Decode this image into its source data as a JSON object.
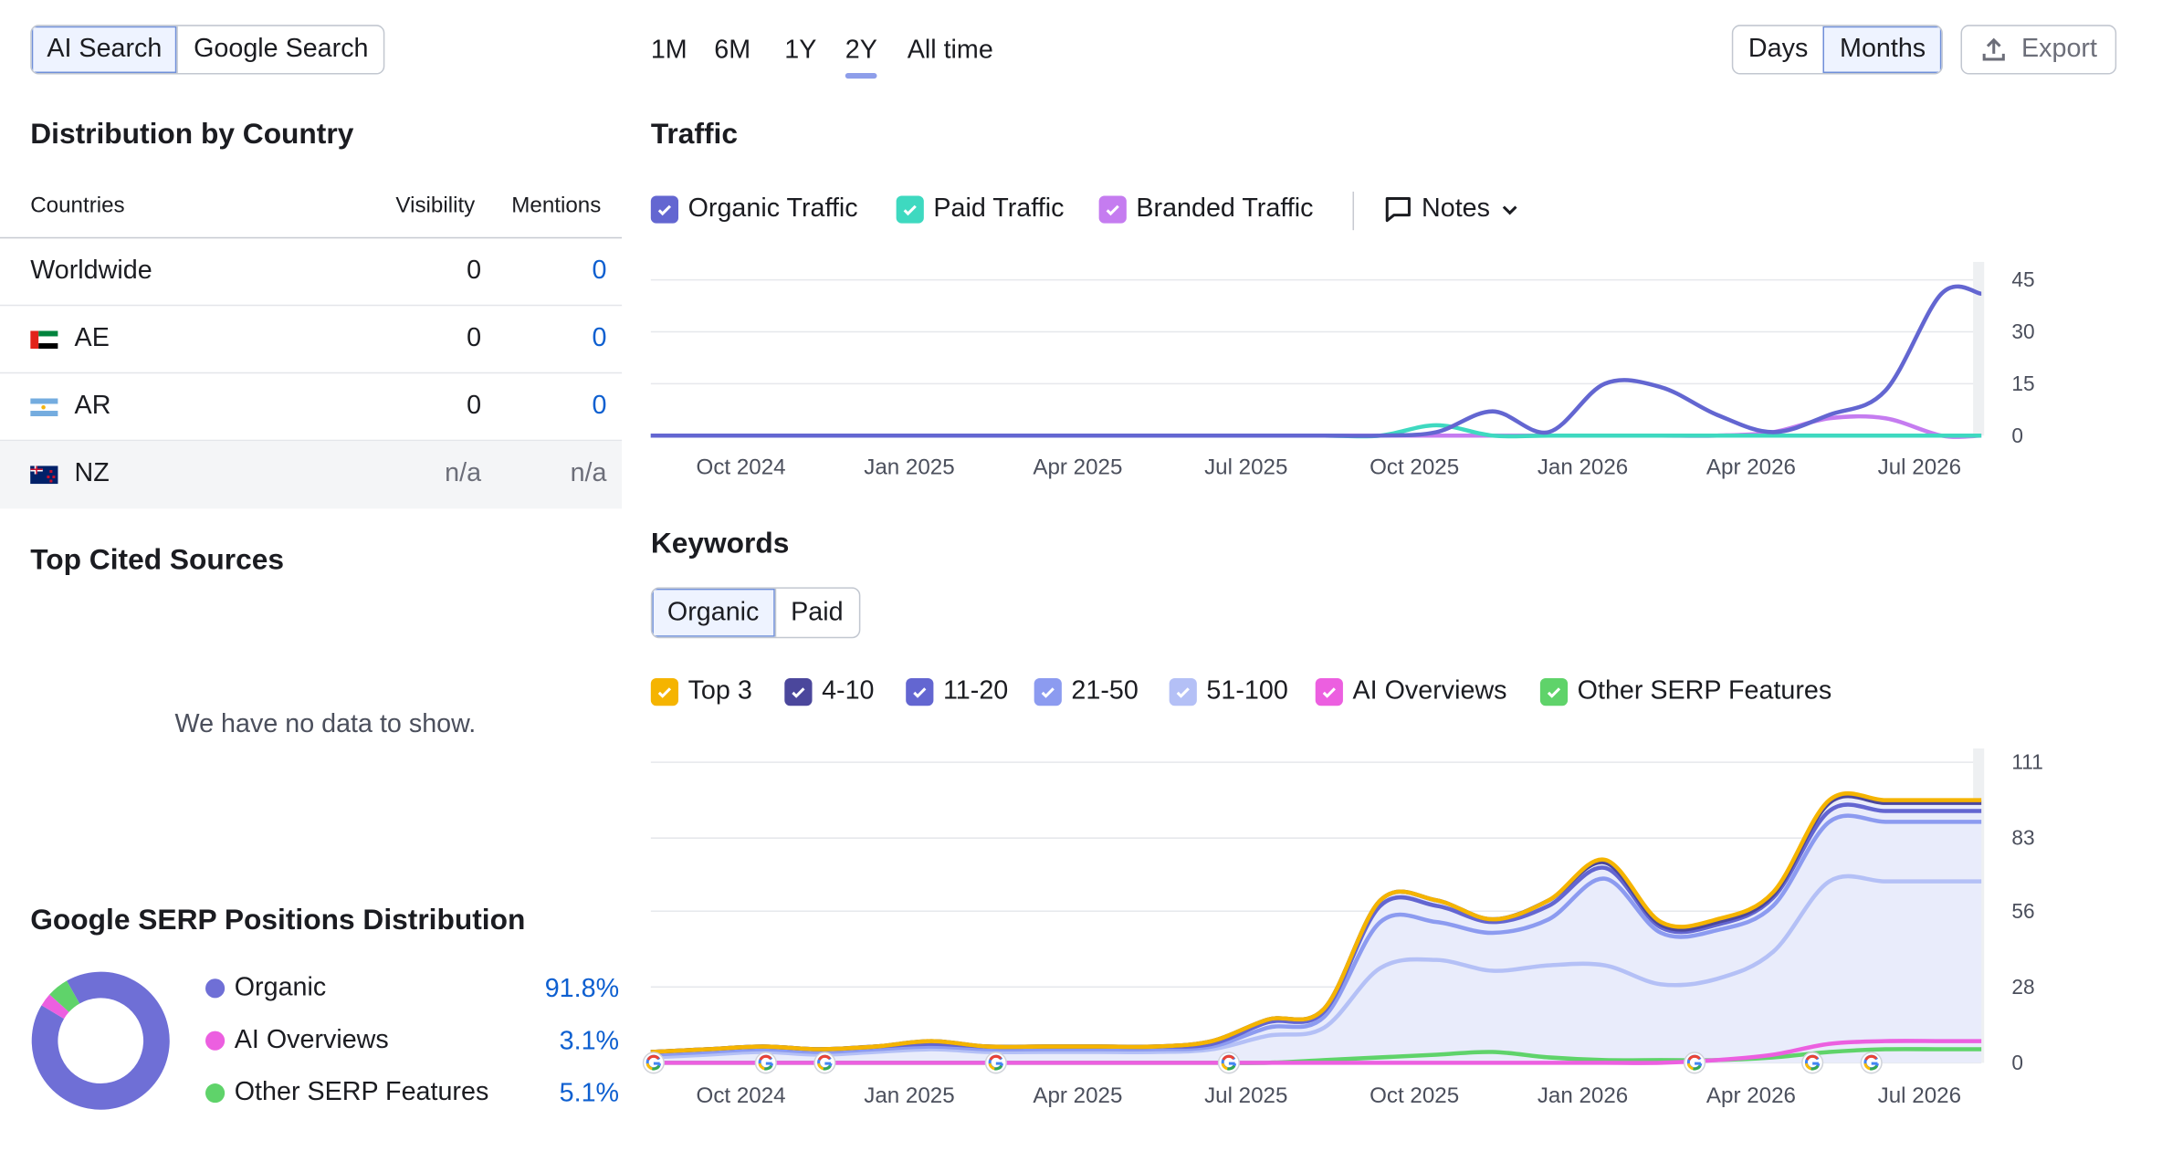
{
  "search_toggle": {
    "ai": "AI Search",
    "google": "Google Search"
  },
  "periods": [
    "1M",
    "6M",
    "1Y",
    "2Y",
    "All time"
  ],
  "granularity": {
    "days": "Days",
    "months": "Months"
  },
  "export_label": "Export",
  "distribution": {
    "title": "Distribution by Country",
    "headers": {
      "countries": "Countries",
      "visibility": "Visibility",
      "mentions": "Mentions"
    },
    "rows": [
      {
        "name": "Worldwide",
        "visibility": "0",
        "mentions": "0"
      },
      {
        "name": "AE",
        "visibility": "0",
        "mentions": "0"
      },
      {
        "name": "AR",
        "visibility": "0",
        "mentions": "0"
      },
      {
        "name": "NZ",
        "visibility": "n/a",
        "mentions": "n/a"
      }
    ]
  },
  "top_cited": {
    "title": "Top Cited Sources",
    "empty": "We have no data to show."
  },
  "serp": {
    "title": "Google SERP Positions Distribution",
    "items": [
      {
        "label": "Organic",
        "pct": "91.8%",
        "value": 91.8,
        "color": "#6f6fd6"
      },
      {
        "label": "AI Overviews",
        "pct": "3.1%",
        "value": 3.1,
        "color": "#ec5fe0"
      },
      {
        "label": "Other SERP Features",
        "pct": "5.1%",
        "value": 5.1,
        "color": "#5fd36a"
      }
    ]
  },
  "traffic": {
    "title": "Traffic",
    "legend": [
      "Organic Traffic",
      "Paid Traffic",
      "Branded Traffic"
    ],
    "notes_label": "Notes"
  },
  "keywords": {
    "title": "Keywords",
    "toggle": {
      "organic": "Organic",
      "paid": "Paid"
    },
    "legend": [
      "Top 3",
      "4-10",
      "11-20",
      "21-50",
      "51-100",
      "AI Overviews",
      "Other SERP Features"
    ]
  },
  "chart_data": [
    {
      "type": "line",
      "title": "Traffic",
      "x": [
        "Aug 2024",
        "Sep 2024",
        "Oct 2024",
        "Nov 2024",
        "Dec 2024",
        "Jan 2025",
        "Feb 2025",
        "Mar 2025",
        "Apr 2025",
        "May 2025",
        "Jun 2025",
        "Jul 2025",
        "Aug 2025",
        "Sep 2025",
        "Oct 2025",
        "Nov 2025",
        "Dec 2025",
        "Jan 2026",
        "Feb 2026",
        "Mar 2026",
        "Apr 2026",
        "May 2026",
        "Jun 2026",
        "Jul 2026",
        "Aug 2026"
      ],
      "x_tick_labels": [
        "Oct 2024",
        "Jan 2025",
        "Apr 2025",
        "Jul 2025",
        "Oct 2025",
        "Jan 2026",
        "Apr 2026",
        "Jul 2026"
      ],
      "y_ticks": [
        0,
        15,
        30,
        45
      ],
      "ylim": [
        0,
        45
      ],
      "series": [
        {
          "name": "Organic Traffic",
          "color": "#6366d1",
          "values": [
            0,
            0,
            0,
            0,
            0,
            0,
            0,
            0,
            0,
            0,
            0,
            0,
            0,
            0,
            1,
            7,
            1,
            15,
            14,
            6,
            1,
            6,
            13,
            41,
            41
          ]
        },
        {
          "name": "Paid Traffic",
          "color": "#3ed9c0",
          "values": [
            0,
            0,
            0,
            0,
            0,
            0,
            0,
            0,
            0,
            0,
            0,
            0,
            0,
            0,
            3,
            0,
            0,
            0,
            0,
            0,
            0,
            0,
            0,
            0,
            0
          ]
        },
        {
          "name": "Branded Traffic",
          "color": "#c57cf0",
          "values": [
            0,
            0,
            0,
            0,
            0,
            0,
            0,
            0,
            0,
            0,
            0,
            0,
            0,
            0,
            0,
            0,
            0,
            0,
            0,
            0,
            1,
            5,
            5,
            0,
            0
          ]
        }
      ],
      "grid": true,
      "legend": "top-left"
    },
    {
      "type": "area",
      "title": "Keywords",
      "x": [
        "Aug 2024",
        "Sep 2024",
        "Oct 2024",
        "Nov 2024",
        "Dec 2024",
        "Jan 2025",
        "Feb 2025",
        "Mar 2025",
        "Apr 2025",
        "May 2025",
        "Jun 2025",
        "Jul 2025",
        "Aug 2025",
        "Sep 2025",
        "Oct 2025",
        "Nov 2025",
        "Dec 2025",
        "Jan 2026",
        "Feb 2026",
        "Mar 2026",
        "Apr 2026",
        "May 2026",
        "Jun 2026",
        "Jul 2026",
        "Aug 2026"
      ],
      "x_tick_labels": [
        "Oct 2024",
        "Jan 2025",
        "Apr 2025",
        "Jul 2025",
        "Oct 2025",
        "Jan 2026",
        "Apr 2026",
        "Jul 2026"
      ],
      "y_ticks": [
        0,
        28,
        56,
        83,
        111
      ],
      "ylim": [
        0,
        111
      ],
      "series": [
        {
          "name": "Top 3",
          "color": "#f5b400",
          "values": [
            4,
            5,
            6,
            5,
            6,
            8,
            6,
            6,
            6,
            6,
            8,
            16,
            20,
            60,
            60,
            53,
            60,
            75,
            52,
            53,
            63,
            97,
            97,
            97,
            97
          ]
        },
        {
          "name": "4-10",
          "color": "#4b479c",
          "values": [
            4,
            5,
            6,
            5,
            6,
            8,
            6,
            6,
            6,
            6,
            8,
            16,
            20,
            60,
            60,
            53,
            60,
            74,
            51,
            52,
            62,
            96,
            96,
            96,
            96
          ]
        },
        {
          "name": "11-20",
          "color": "#6366d1",
          "values": [
            4,
            5,
            6,
            5,
            6,
            7,
            6,
            6,
            6,
            6,
            7,
            15,
            19,
            58,
            58,
            52,
            58,
            72,
            50,
            51,
            61,
            93,
            93,
            93,
            93
          ]
        },
        {
          "name": "21-50",
          "color": "#8c9bf0",
          "values": [
            3,
            4,
            5,
            4,
            5,
            6,
            5,
            5,
            5,
            5,
            6,
            13,
            17,
            52,
            52,
            48,
            53,
            68,
            48,
            49,
            58,
            89,
            89,
            89,
            89
          ]
        },
        {
          "name": "51-100",
          "color": "#b4c0f6",
          "values": [
            2,
            3,
            4,
            3,
            4,
            5,
            4,
            4,
            4,
            4,
            5,
            10,
            13,
            35,
            38,
            34,
            36,
            36,
            29,
            31,
            41,
            67,
            67,
            67,
            67
          ]
        },
        {
          "name": "AI Overviews",
          "color": "#ec5fe0",
          "values": [
            0,
            0,
            0,
            0,
            0,
            0,
            0,
            0,
            0,
            0,
            0,
            0,
            0,
            0,
            0,
            0,
            0,
            0,
            0,
            1,
            3,
            7,
            8,
            8,
            8
          ]
        },
        {
          "name": "Other SERP Features",
          "color": "#5fd36a",
          "values": [
            0,
            0,
            0,
            0,
            0,
            0,
            0,
            0,
            0,
            0,
            0,
            0,
            1,
            2,
            3,
            4,
            2,
            1,
            1,
            1,
            2,
            4,
            5,
            5,
            5
          ]
        }
      ],
      "grid": true,
      "legend": "top-left"
    }
  ]
}
